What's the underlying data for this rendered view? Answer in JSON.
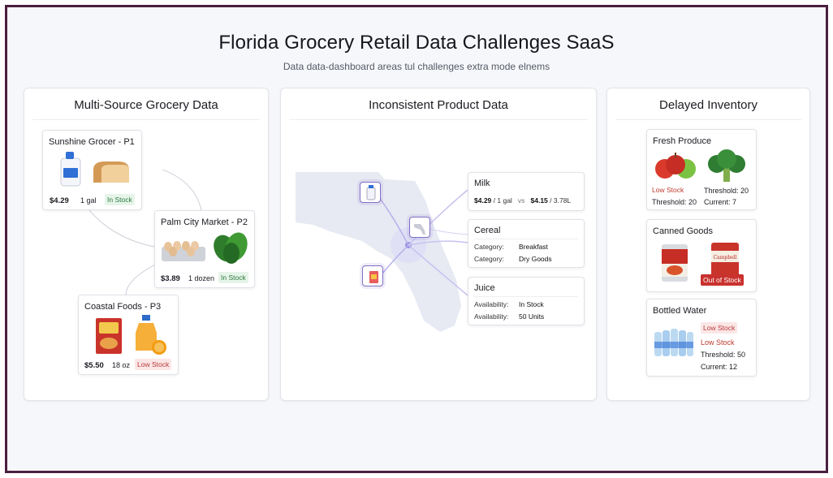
{
  "header": {
    "title": "Florida Grocery Retail Data Challenges SaaS",
    "subtitle": "Data data-dashboard areas tul challenges extra mode elnems"
  },
  "panels": {
    "multi_source": {
      "title": "Multi-Source Grocery Data",
      "cards": [
        {
          "title": "Sunshine Grocer - P1",
          "price": "$4.29",
          "unit": "1 gal",
          "status": "In Stock"
        },
        {
          "title": "Palm City Market - P2",
          "price": "$3.89",
          "unit": "1 dozen",
          "status": "In Stock"
        },
        {
          "title": "Coastal Foods - P3",
          "price": "$5.50",
          "unit": "18 oz",
          "status": "Low Stock"
        }
      ]
    },
    "inconsistent": {
      "title": "Inconsistent Product Data",
      "milk": {
        "title": "Milk",
        "price_a": "$4.29",
        "unit_a": "/ 1 gal",
        "vs": "vs",
        "price_b": "$4.15",
        "unit_b": "/ 3.78L"
      },
      "cereal": {
        "title": "Cereal",
        "label_1": "Category:",
        "value_1": "Breakfast",
        "label_2": "Category:",
        "value_2": "Dry Goods"
      },
      "juice": {
        "title": "Juice",
        "label_1": "Availability:",
        "value_1": "In Stock",
        "label_2": "Availability:",
        "value_2": "50 Units"
      }
    },
    "delayed": {
      "title": "Delayed Inventory",
      "produce": {
        "title": "Fresh Produce",
        "status": "Low Stock",
        "threshold_left": "Threshold: 20",
        "threshold_right": "Threshold: 20",
        "current": "Current: 7"
      },
      "canned": {
        "title": "Canned Goods",
        "status": "Out of Stock",
        "can_label": "Campbell"
      },
      "water": {
        "title": "Bottled Water",
        "status": "Low Stock",
        "status2": "Low Stock",
        "threshold": "Threshold: 50",
        "current": "Current: 12"
      }
    }
  },
  "colors": {
    "frame": "#4a1f3f",
    "in_stock": "#2d7a3f",
    "low_stock": "#b93a3a",
    "accent": "#7f6fc7"
  }
}
